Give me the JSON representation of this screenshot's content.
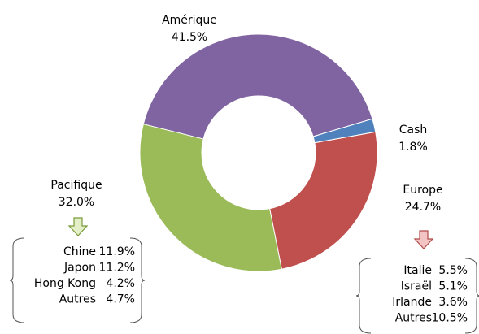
{
  "chart_data": {
    "type": "donut",
    "categories": [
      "Amérique",
      "Cash",
      "Europe",
      "Pacifique"
    ],
    "values": [
      41.5,
      1.8,
      24.7,
      32.0
    ],
    "value_labels": [
      "41.5%",
      "1.8%",
      "24.7%",
      "32.0%"
    ],
    "colors": [
      "#8064a2",
      "#4f81bd",
      "#c0504d",
      "#9bbb59"
    ],
    "details": [
      null,
      null,
      {
        "items": [
          {
            "name": "Italie",
            "value": 5.5,
            "label": "5.5%"
          },
          {
            "name": "Israël",
            "value": 5.1,
            "label": "5.1%"
          },
          {
            "name": "Irlande",
            "value": 3.6,
            "label": "3.6%"
          },
          {
            "name": "Autres",
            "value": 10.5,
            "label": "10.5%"
          }
        ]
      },
      {
        "items": [
          {
            "name": "Chine",
            "value": 11.9,
            "label": "11.9%"
          },
          {
            "name": "Japon",
            "value": 11.2,
            "label": "11.2%"
          },
          {
            "name": "Hong Kong",
            "value": 4.2,
            "label": "4.2%"
          },
          {
            "name": "Autres",
            "value": 4.7,
            "label": "4.7%"
          }
        ]
      }
    ]
  }
}
